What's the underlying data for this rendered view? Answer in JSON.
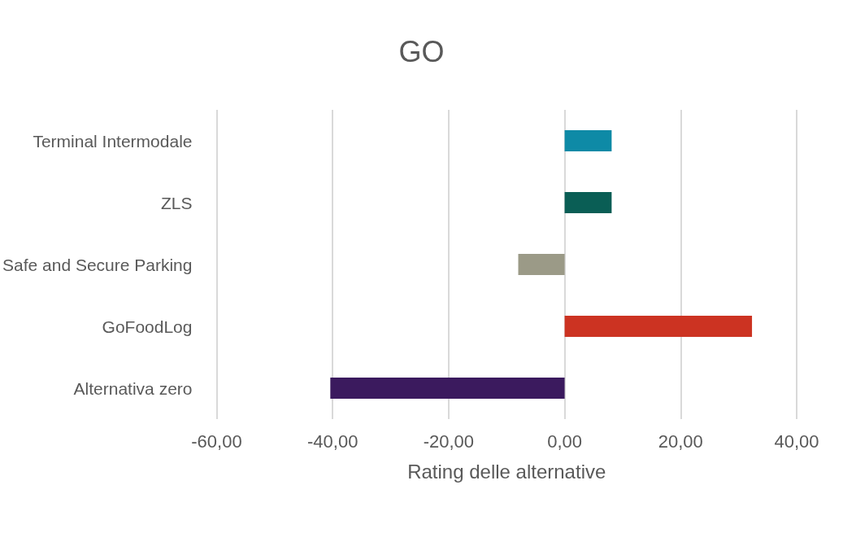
{
  "chart_data": {
    "type": "bar",
    "orientation": "horizontal",
    "title": "GO",
    "xlabel": "Rating delle alternative",
    "categories": [
      "Terminal Intermodale",
      "ZLS",
      "Safe and Secure Parking",
      "GoFoodLog",
      "Alternativa zero"
    ],
    "values": [
      8.1,
      8.1,
      -8.0,
      32.3,
      -40.4
    ],
    "colors": [
      "#0e8aa6",
      "#0a5e55",
      "#9b9a87",
      "#cc3322",
      "#3b1a5e"
    ],
    "xlim": [
      -60,
      40
    ],
    "xticks": [
      {
        "value": -60,
        "label": "-60,00"
      },
      {
        "value": -40,
        "label": "-40,00"
      },
      {
        "value": -20,
        "label": "-20,00"
      },
      {
        "value": 0,
        "label": "0,00"
      },
      {
        "value": 20,
        "label": "20,00"
      },
      {
        "value": 40,
        "label": "40,00"
      }
    ],
    "grid": "x"
  }
}
